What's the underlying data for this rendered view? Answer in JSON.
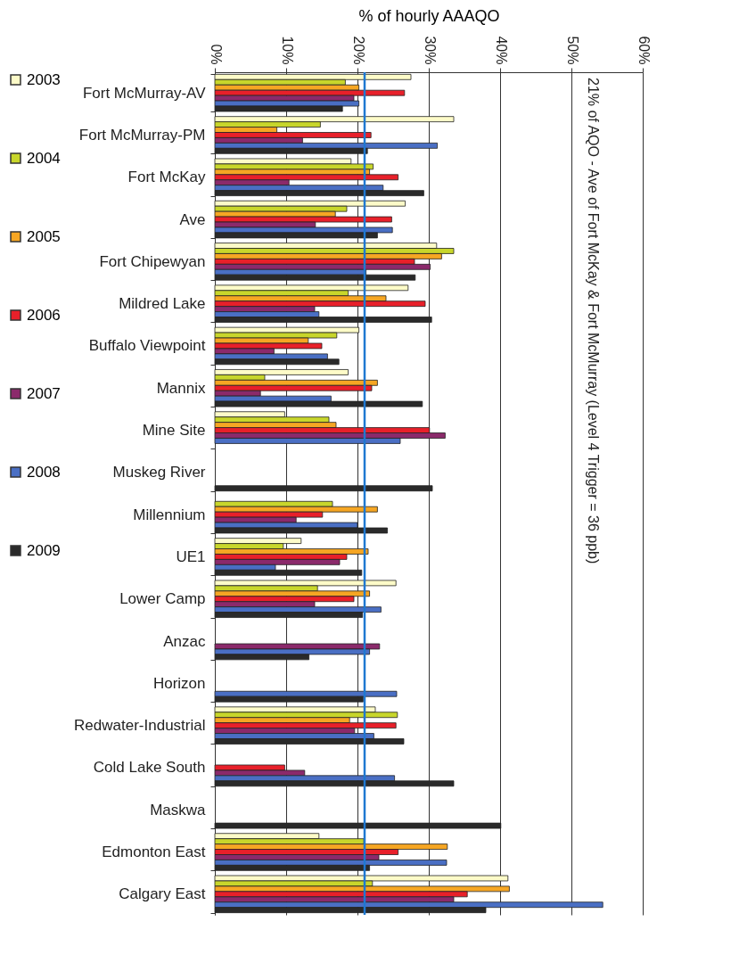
{
  "chart_data": {
    "type": "bar",
    "orientation": "horizontal",
    "xlabel": "% of hourly AAAQO",
    "categories": [
      "Fort McMurray-AV",
      "Fort McMurray-PM",
      "Fort McKay",
      "Ave",
      "Fort Chipewyan",
      "Mildred Lake",
      "Buffalo Viewpoint",
      "Mannix",
      "Mine Site",
      "Muskeg River",
      "Millennium",
      "UE1",
      "Lower Camp",
      "Anzac",
      "Horizon",
      "Redwater-Industrial",
      "Cold Lake South",
      "Maskwa",
      "Edmonton East",
      "Calgary East"
    ],
    "series": [
      {
        "name": "2003",
        "color": "#fdfbc8",
        "values": [
          27.5,
          33.5,
          19.1,
          26.7,
          31.1,
          27.1,
          20.2,
          18.7,
          9.8,
          null,
          null,
          12.1,
          25.4,
          null,
          null,
          22.5,
          null,
          null,
          14.6,
          41.1
        ]
      },
      {
        "name": "2004",
        "color": "#c8d62b",
        "values": [
          18.3,
          14.8,
          22.2,
          18.5,
          33.5,
          18.7,
          17.1,
          7.0,
          16.0,
          null,
          16.5,
          9.6,
          14.4,
          null,
          null,
          25.6,
          null,
          null,
          20.9,
          22.1
        ]
      },
      {
        "name": "2005",
        "color": "#f6a623",
        "values": [
          20.2,
          8.7,
          21.7,
          16.9,
          31.8,
          24.0,
          13.1,
          22.8,
          17.0,
          null,
          22.8,
          21.5,
          21.7,
          null,
          null,
          18.9,
          null,
          null,
          32.6,
          41.3
        ]
      },
      {
        "name": "2006",
        "color": "#e8202a",
        "values": [
          26.6,
          21.9,
          25.7,
          24.8,
          28.0,
          29.5,
          15.0,
          22.0,
          30.1,
          null,
          15.1,
          18.5,
          19.5,
          null,
          null,
          25.4,
          9.8,
          null,
          25.7,
          35.4
        ]
      },
      {
        "name": "2007",
        "color": "#8b2a6b",
        "values": [
          19.5,
          12.3,
          10.4,
          14.1,
          30.2,
          14.0,
          8.3,
          6.4,
          32.3,
          null,
          11.4,
          17.5,
          14.0,
          23.1,
          null,
          19.6,
          12.6,
          null,
          23.0,
          33.5
        ]
      },
      {
        "name": "2008",
        "color": "#4a6fc4",
        "values": [
          20.2,
          31.2,
          23.6,
          24.9,
          21.2,
          14.6,
          15.8,
          16.3,
          26.0,
          null,
          20.0,
          8.5,
          23.3,
          21.7,
          25.5,
          22.3,
          25.2,
          null,
          32.5,
          54.4
        ]
      },
      {
        "name": "2009",
        "color": "#2a2a2a",
        "values": [
          17.9,
          21.4,
          29.3,
          22.8,
          28.1,
          30.4,
          17.4,
          29.1,
          null,
          30.5,
          24.2,
          20.6,
          20.7,
          13.2,
          20.8,
          26.5,
          33.5,
          40.1,
          21.7,
          38.0
        ]
      }
    ],
    "xlim": [
      0,
      60
    ],
    "xticks": [
      {
        "value": 0,
        "label": "0%"
      },
      {
        "value": 10,
        "label": "10%"
      },
      {
        "value": 20,
        "label": "20%"
      },
      {
        "value": 30,
        "label": "30%"
      },
      {
        "value": 40,
        "label": "40%"
      },
      {
        "value": 50,
        "label": "50%"
      },
      {
        "value": 60,
        "label": "60%"
      }
    ],
    "grid": "x",
    "legend": "left",
    "ref_lines": [
      {
        "axis": "x",
        "value": 21,
        "color": "#1f78d1"
      }
    ],
    "annotations": [
      "21% of AQO - Ave of Fort McKay & Fort McMurray (Level 4 Trigger = 36 ppb)"
    ]
  }
}
